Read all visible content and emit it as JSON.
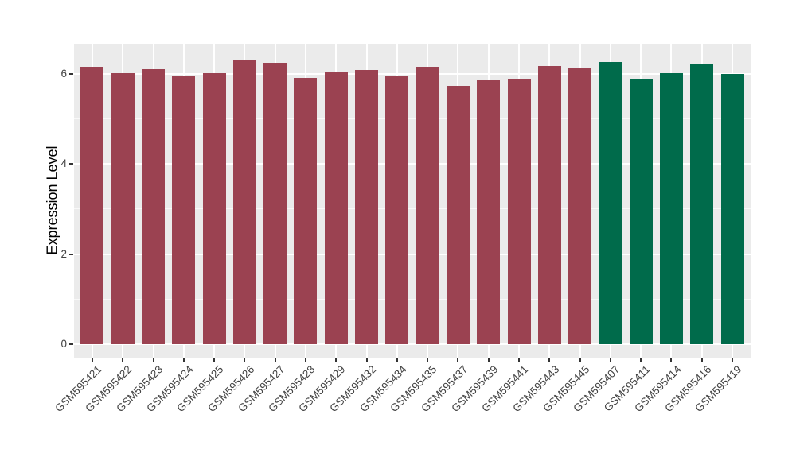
{
  "chart_data": {
    "type": "bar",
    "title": "",
    "xlabel": "",
    "ylabel": "Expression Level",
    "categories": [
      "GSM595421",
      "GSM595422",
      "GSM595423",
      "GSM595424",
      "GSM595425",
      "GSM595426",
      "GSM595427",
      "GSM595428",
      "GSM595429",
      "GSM595432",
      "GSM595434",
      "GSM595435",
      "GSM595437",
      "GSM595439",
      "GSM595441",
      "GSM595443",
      "GSM595445",
      "GSM595407",
      "GSM595411",
      "GSM595414",
      "GSM595416",
      "GSM595419"
    ],
    "values": [
      6.15,
      6.02,
      6.11,
      5.95,
      6.02,
      6.32,
      6.25,
      5.91,
      6.05,
      6.08,
      5.95,
      6.16,
      5.73,
      5.85,
      5.89,
      6.18,
      6.12,
      6.27,
      5.89,
      6.02,
      6.22,
      6.0
    ],
    "bar_colors": [
      "#9B4251",
      "#9B4251",
      "#9B4251",
      "#9B4251",
      "#9B4251",
      "#9B4251",
      "#9B4251",
      "#9B4251",
      "#9B4251",
      "#9B4251",
      "#9B4251",
      "#9B4251",
      "#9B4251",
      "#9B4251",
      "#9B4251",
      "#9B4251",
      "#9B4251",
      "#006B4B",
      "#006B4B",
      "#006B4B",
      "#006B4B",
      "#006B4B"
    ],
    "group_colors": {
      "left_group": "#9B4251",
      "right_group": "#006B4B"
    },
    "yticks": [
      0,
      2,
      4,
      6
    ],
    "yticks_minor": [
      1,
      3,
      5
    ],
    "ylim": [
      -0.3,
      6.67
    ],
    "grid": "on",
    "legend": "none",
    "panel_bg": "#EBEBEB",
    "grid_color": "#FFFFFF",
    "tick_label_color": "#424242",
    "axis_title_color": "#000000",
    "figure_bg": "#FFFFFF"
  }
}
